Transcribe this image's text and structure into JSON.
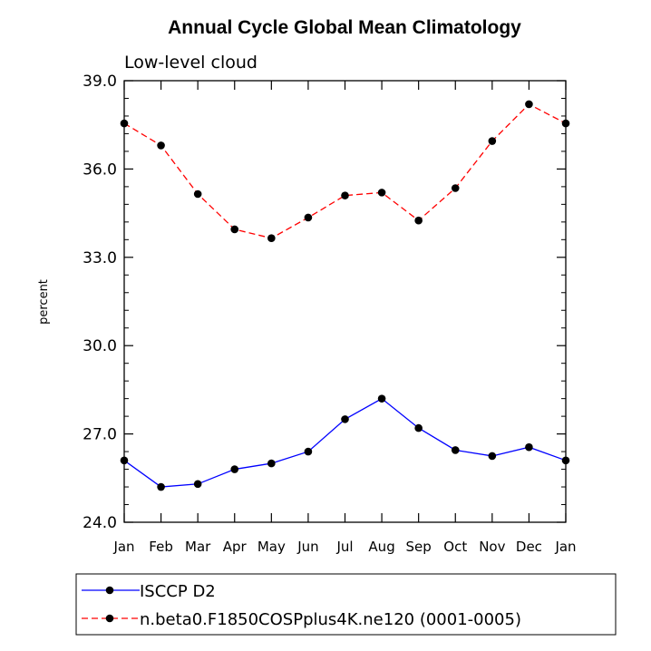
{
  "chart_data": {
    "type": "line",
    "title": "Annual Cycle Global Mean Climatology",
    "subtitle": "Low-level cloud",
    "xlabel": "",
    "ylabel": "percent",
    "categories": [
      "Jan",
      "Feb",
      "Mar",
      "Apr",
      "May",
      "Jun",
      "Jul",
      "Aug",
      "Sep",
      "Oct",
      "Nov",
      "Dec",
      "Jan"
    ],
    "ylim": [
      24.0,
      39.0
    ],
    "yticks": [
      24.0,
      27.0,
      30.0,
      33.0,
      36.0,
      39.0
    ],
    "ytick_labels": [
      "24.0",
      "27.0",
      "30.0",
      "33.0",
      "36.0",
      "39.0"
    ],
    "series": [
      {
        "name": "ISCCP D2",
        "color": "#0000ff",
        "dash": "solid",
        "values": [
          26.1,
          25.2,
          25.3,
          25.8,
          26.0,
          26.4,
          27.5,
          28.2,
          27.2,
          26.45,
          26.25,
          26.55,
          26.1
        ]
      },
      {
        "name": "n.beta0.F1850COSPplus4K.ne120 (0001-0005)",
        "color": "#ff0000",
        "dash": "dashed",
        "values": [
          37.55,
          36.8,
          35.15,
          33.95,
          33.65,
          34.35,
          35.1,
          35.2,
          34.25,
          35.35,
          36.95,
          38.2,
          37.55
        ]
      }
    ],
    "marker_color": "#000000",
    "legend_position": "bottom"
  }
}
